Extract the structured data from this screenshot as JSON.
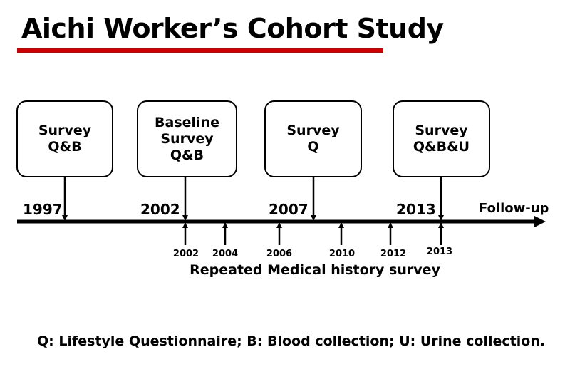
{
  "title": "Aichi Worker’s Cohort Study",
  "accent_color": "#cc0000",
  "boxes": [
    {
      "lines": [
        "Survey",
        "Q&B"
      ]
    },
    {
      "lines": [
        "Baseline",
        "Survey",
        "Q&B"
      ]
    },
    {
      "lines": [
        "Survey",
        "Q"
      ]
    },
    {
      "lines": [
        "Survey",
        "Q&B&U"
      ]
    }
  ],
  "years": [
    "1997",
    "2002",
    "2007",
    "2013"
  ],
  "followup_label": "Follow-up",
  "medical_years": [
    "2002",
    "2004",
    "2006",
    "2010",
    "2012",
    "2013"
  ],
  "medical_label": "Repeated Medical history survey",
  "legend": "Q: Lifestyle Questionnaire; B: Blood collection; U: Urine collection."
}
